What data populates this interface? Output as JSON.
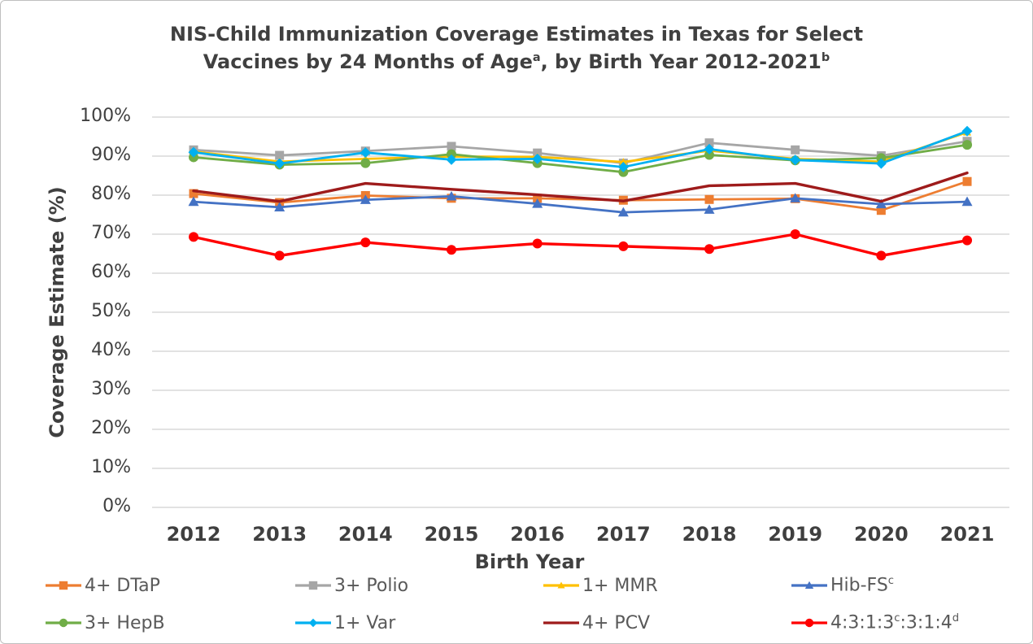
{
  "title": {
    "line1": "NIS-Child Immunization Coverage Estimates in Texas for Select",
    "line2_pre": "Vaccines by 24 Months of Age",
    "sup_a": "a",
    "line2_mid": ", by Birth Year 2012-2021",
    "sup_b": "b"
  },
  "chart_data": {
    "type": "line",
    "title": "NIS-Child Immunization Coverage Estimates in Texas for Select Vaccines by 24 Months of Age, by Birth Year 2012-2021",
    "xlabel": "Birth Year",
    "ylabel": "Coverage Estimate (%)",
    "ylim": [
      0,
      100
    ],
    "grid": "horizontal",
    "grid_color": "#d9d9d9",
    "legend_position": "bottom",
    "y_ticks": [
      "0%",
      "10%",
      "20%",
      "30%",
      "40%",
      "50%",
      "60%",
      "70%",
      "80%",
      "90%",
      "100%"
    ],
    "categories": [
      "2012",
      "2013",
      "2014",
      "2015",
      "2016",
      "2017",
      "2018",
      "2019",
      "2020",
      "2021"
    ],
    "series": [
      {
        "id": "dtap",
        "label": [
          {
            "t": "4+ DTaP",
            "sup": false
          }
        ],
        "color": "#ED7D31",
        "marker": "square",
        "values": [
          80.4,
          78.1,
          79.9,
          79.2,
          79.2,
          78.7,
          78.9,
          79.1,
          76.1,
          83.5
        ]
      },
      {
        "id": "polio",
        "label": [
          {
            "t": "3+ Polio",
            "sup": false
          }
        ],
        "color": "#A6A6A6",
        "marker": "square",
        "values": [
          91.6,
          90.2,
          91.3,
          92.5,
          90.8,
          88.2,
          93.4,
          91.6,
          90.1,
          93.8
        ]
      },
      {
        "id": "mmr",
        "label": [
          {
            "t": "1+ MMR",
            "sup": false
          }
        ],
        "color": "#FFC000",
        "marker": "triangle",
        "values": [
          91.2,
          88.6,
          89.3,
          89.9,
          89.8,
          88.5,
          91.4,
          89.3,
          88.6,
          96.1
        ]
      },
      {
        "id": "hib_fs",
        "label": [
          {
            "t": "Hib-FS",
            "sup": false
          },
          {
            "t": "c",
            "sup": true
          }
        ],
        "color": "#4472C4",
        "marker": "triangle",
        "values": [
          78.3,
          76.9,
          78.8,
          79.7,
          77.8,
          75.6,
          76.3,
          79.2,
          77.7,
          78.3
        ]
      },
      {
        "id": "hepb",
        "label": [
          {
            "t": "3+ HepB",
            "sup": false
          }
        ],
        "color": "#70AD47",
        "marker": "circle",
        "values": [
          89.7,
          87.8,
          88.2,
          90.5,
          88.2,
          85.9,
          90.3,
          88.9,
          89.5,
          92.9
        ]
      },
      {
        "id": "var",
        "label": [
          {
            "t": "1+ Var",
            "sup": false
          }
        ],
        "color": "#00B0F0",
        "marker": "diamond",
        "values": [
          91.0,
          88.1,
          90.9,
          89.1,
          89.3,
          87.2,
          91.8,
          89.0,
          88.1,
          96.4
        ]
      },
      {
        "id": "pcv",
        "label": [
          {
            "t": "4+ PCV",
            "sup": false
          }
        ],
        "color": "#9E1B1B",
        "marker": "none",
        "values": [
          81.1,
          78.4,
          83.0,
          81.5,
          80.1,
          78.5,
          82.4,
          83.0,
          78.4,
          85.7
        ]
      },
      {
        "id": "combo_4313314",
        "label": [
          {
            "t": "4:3:1:3",
            "sup": false
          },
          {
            "t": "c",
            "sup": true
          },
          {
            "t": ":3:1:4",
            "sup": false
          },
          {
            "t": "d",
            "sup": true
          }
        ],
        "color": "#FF0000",
        "marker": "circle",
        "values": [
          69.3,
          64.5,
          67.9,
          66.0,
          67.6,
          66.9,
          66.2,
          70.0,
          64.5,
          68.4
        ]
      }
    ]
  }
}
